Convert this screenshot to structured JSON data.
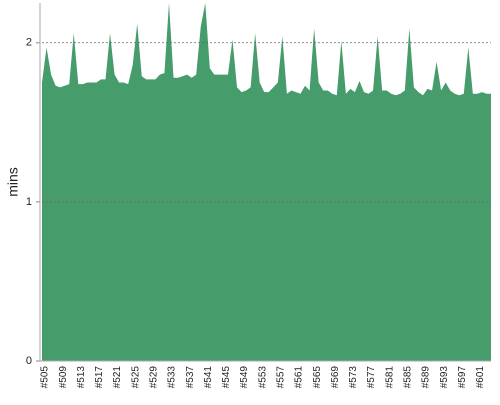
{
  "chart_data": {
    "type": "area",
    "ylabel": "mins",
    "color": "#469d6b",
    "categories": [
      "#505",
      null,
      null,
      null,
      "#509",
      null,
      null,
      null,
      "#513",
      null,
      null,
      null,
      "#517",
      null,
      null,
      null,
      "#521",
      null,
      null,
      null,
      "#525",
      null,
      null,
      null,
      "#529",
      null,
      null,
      null,
      "#533",
      null,
      null,
      null,
      "#537",
      null,
      null,
      null,
      "#541",
      null,
      null,
      null,
      "#545",
      null,
      null,
      null,
      "#549",
      null,
      null,
      null,
      "#553",
      null,
      null,
      null,
      "#557",
      null,
      null,
      null,
      "#561",
      null,
      null,
      null,
      "#565",
      null,
      null,
      null,
      "#569",
      null,
      null,
      null,
      "#573",
      null,
      null,
      null,
      "#577",
      null,
      null,
      null,
      "#581",
      null,
      null,
      null,
      "#585",
      null,
      null,
      null,
      "#589",
      null,
      null,
      null,
      "#593",
      null,
      null,
      null,
      "#597",
      null,
      null,
      null,
      "#601",
      null,
      null,
      null
    ],
    "values": [
      1.75,
      1.97,
      1.8,
      1.73,
      1.72,
      1.73,
      1.74,
      2.06,
      1.74,
      1.74,
      1.75,
      1.75,
      1.75,
      1.77,
      1.77,
      2.06,
      1.8,
      1.75,
      1.75,
      1.74,
      1.86,
      2.12,
      1.79,
      1.77,
      1.77,
      1.77,
      1.8,
      1.81,
      2.25,
      1.78,
      1.78,
      1.79,
      1.8,
      1.78,
      1.8,
      2.1,
      2.25,
      1.84,
      1.8,
      1.8,
      1.8,
      1.8,
      2.02,
      1.72,
      1.69,
      1.7,
      1.72,
      2.06,
      1.75,
      1.69,
      1.69,
      1.72,
      1.75,
      2.04,
      1.68,
      1.7,
      1.69,
      1.68,
      1.73,
      1.7,
      2.09,
      1.75,
      1.7,
      1.7,
      1.68,
      1.67,
      2.01,
      1.68,
      1.71,
      1.69,
      1.76,
      1.69,
      1.68,
      1.7,
      2.04,
      1.7,
      1.7,
      1.68,
      1.67,
      1.68,
      1.7,
      2.09,
      1.72,
      1.69,
      1.67,
      1.71,
      1.7,
      1.88,
      1.7,
      1.75,
      1.7,
      1.68,
      1.67,
      1.68,
      1.97,
      1.68,
      1.68,
      1.69,
      1.68,
      1.68
    ],
    "ylim": [
      0,
      2.25
    ],
    "yticks": [
      0,
      1,
      2
    ],
    "grid": true
  }
}
